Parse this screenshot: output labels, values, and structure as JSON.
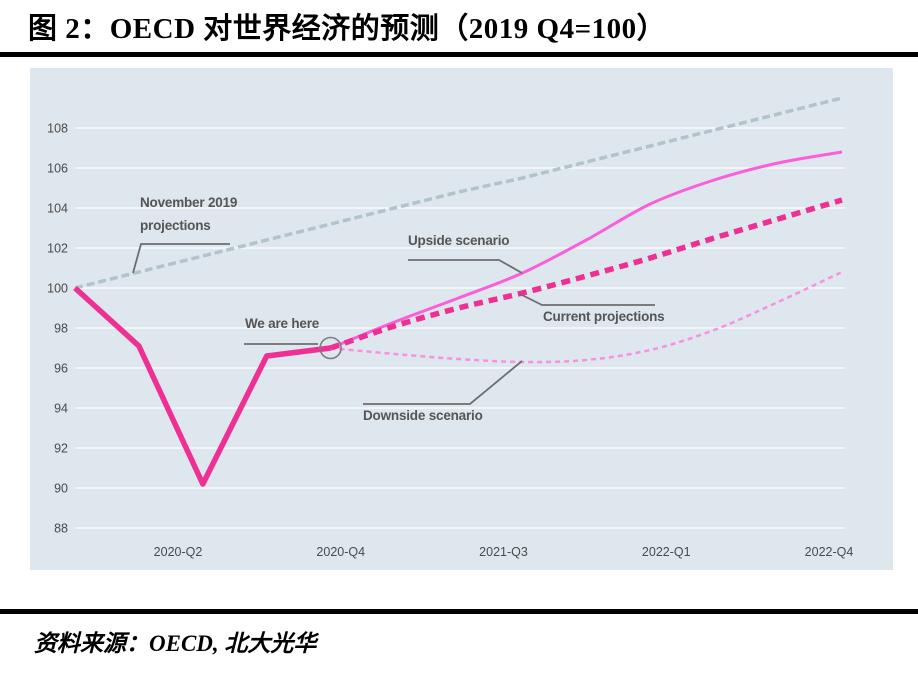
{
  "figure": {
    "title": "图 2：OECD 对世界经济的预测（2019 Q4=100）",
    "source": "资料来源：OECD, 北大光华"
  },
  "chart_data": {
    "type": "line",
    "title": "OECD 对世界经济的预测",
    "index_note": "2019 Q4 = 100",
    "x_tick_labels": [
      "2020-Q2",
      "2020-Q4",
      "2021-Q3",
      "2022-Q1",
      "2022-Q4"
    ],
    "y_tick_labels": [
      88,
      90,
      92,
      94,
      96,
      98,
      100,
      102,
      104,
      106,
      108
    ],
    "ylim": [
      88,
      108
    ],
    "grid": true,
    "background_color": "#dee7ed",
    "grid_color": "#f1f5f8",
    "axis_text_color": "#4a4a4a",
    "annotation_text_color": "#555555",
    "annotation_line_color": "#6e6e6e",
    "series": [
      {
        "id": "november-2019-projections",
        "name": "November 2019 projections",
        "style": "dashed",
        "smooth": false,
        "color": "#b3c3cb",
        "width": 3.5,
        "dash": "8 4",
        "start_q": 0,
        "values": [
          100,
          100.8,
          101.6,
          102.4,
          103.2,
          104,
          104.8,
          105.5,
          106.3,
          107.1,
          107.9,
          108.7,
          109.5
        ]
      },
      {
        "id": "downside-scenario",
        "name": "Downside scenario",
        "style": "dashed",
        "smooth": true,
        "color": "#f990e1",
        "width": 2.5,
        "dash": "5 4",
        "start_q": 4,
        "values": [
          97,
          96.7,
          96.45,
          96.3,
          96.4,
          96.9,
          97.9,
          99.3,
          100.8
        ]
      },
      {
        "id": "upside-scenario",
        "name": "Upside scenario",
        "style": "solid",
        "smooth": true,
        "color": "#fa5ed8",
        "width": 3,
        "dash": "",
        "start_q": 4,
        "values": [
          97,
          98.3,
          99.5,
          100.75,
          102.4,
          104.2,
          105.4,
          106.25,
          106.8
        ]
      },
      {
        "id": "current-projections",
        "name": "Current projections",
        "style": "dashed",
        "smooth": true,
        "color": "#ee2f94",
        "width": 5.5,
        "dash": "9 6",
        "start_q": 4,
        "values": [
          97,
          98.1,
          99,
          99.75,
          100.6,
          101.5,
          102.5,
          103.45,
          104.4
        ]
      },
      {
        "id": "realized",
        "name": "Realized path to We are here",
        "style": "solid",
        "smooth": false,
        "color": "#ee2f94",
        "width": 5.5,
        "dash": "",
        "start_q": 0,
        "values": [
          100,
          97.1,
          90.2,
          96.6,
          97
        ]
      }
    ],
    "annotations": {
      "november": {
        "line1": "November 2019",
        "line2": "projections"
      },
      "upside": {
        "text": "Upside scenario"
      },
      "we_are_here": {
        "text": "We are here"
      },
      "current": {
        "text": "Current projections"
      },
      "downside": {
        "text": "Downside scenario"
      }
    }
  }
}
